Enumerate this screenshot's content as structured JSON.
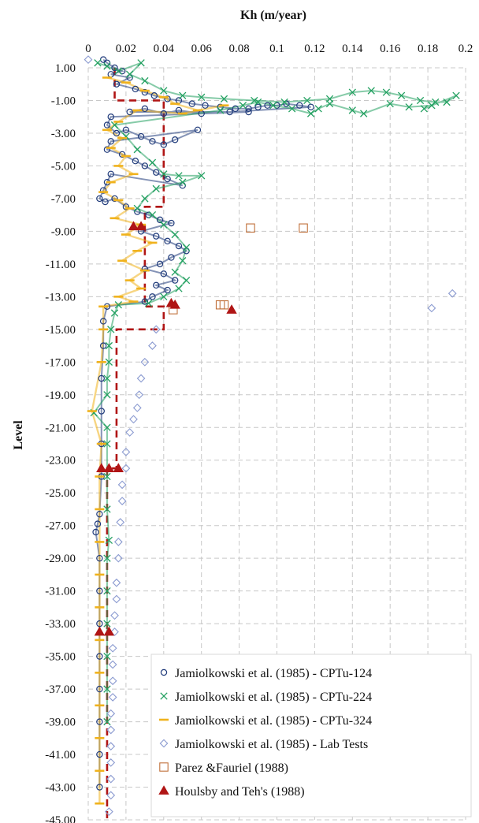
{
  "chart_data": {
    "type": "scatter",
    "title": "",
    "xlabel": "Kh (m/year)",
    "ylabel": "Level",
    "xlim": [
      0,
      0.2
    ],
    "ylim": [
      -45,
      1
    ],
    "x_ticks": [
      "0",
      "0.02",
      "0.04",
      "0.06",
      "0.08",
      "0.1",
      "0.12",
      "0.14",
      "0.16",
      "0.18",
      "0.2"
    ],
    "y_ticks": [
      "1.00",
      "-1.00",
      "-3.00",
      "-5.00",
      "-7.00",
      "-9.00",
      "-11.00",
      "-13.00",
      "-15.00",
      "-17.00",
      "-19.00",
      "-21.00",
      "-23.00",
      "-25.00",
      "-27.00",
      "-29.00",
      "-31.00",
      "-33.00",
      "-35.00",
      "-37.00",
      "-39.00",
      "-41.00",
      "-43.00",
      "-45.00"
    ],
    "x_axis_position": "top",
    "grid": true,
    "legend_position": "bottom-right",
    "series": [
      {
        "name": "Jamiolkowski et al. (1985) - CPTu-124",
        "marker": "circle",
        "color": "#1f3a7a",
        "points": [
          [
            0.008,
            1.5
          ],
          [
            0.01,
            1.3
          ],
          [
            0.014,
            1.0
          ],
          [
            0.018,
            0.8
          ],
          [
            0.012,
            0.6
          ],
          [
            0.022,
            0.4
          ],
          [
            0.015,
            0.0
          ],
          [
            0.025,
            -0.3
          ],
          [
            0.03,
            -0.5
          ],
          [
            0.035,
            -0.7
          ],
          [
            0.042,
            -0.9
          ],
          [
            0.048,
            -1.0
          ],
          [
            0.055,
            -1.2
          ],
          [
            0.062,
            -1.3
          ],
          [
            0.07,
            -1.4
          ],
          [
            0.078,
            -1.5
          ],
          [
            0.085,
            -1.5
          ],
          [
            0.09,
            -1.4
          ],
          [
            0.095,
            -1.3
          ],
          [
            0.1,
            -1.3
          ],
          [
            0.105,
            -1.2
          ],
          [
            0.112,
            -1.3
          ],
          [
            0.118,
            -1.4
          ],
          [
            0.075,
            -1.7
          ],
          [
            0.06,
            -1.8
          ],
          [
            0.048,
            -1.6
          ],
          [
            0.04,
            -1.8
          ],
          [
            0.03,
            -1.5
          ],
          [
            0.022,
            -1.7
          ],
          [
            0.085,
            -1.7
          ],
          [
            0.012,
            -2.0
          ],
          [
            0.01,
            -2.5
          ],
          [
            0.015,
            -3.0
          ],
          [
            0.02,
            -2.8
          ],
          [
            0.028,
            -3.2
          ],
          [
            0.034,
            -3.5
          ],
          [
            0.04,
            -3.7
          ],
          [
            0.046,
            -3.4
          ],
          [
            0.058,
            -2.8
          ],
          [
            0.012,
            -3.5
          ],
          [
            0.01,
            -4.0
          ],
          [
            0.018,
            -4.3
          ],
          [
            0.025,
            -4.7
          ],
          [
            0.03,
            -5.0
          ],
          [
            0.036,
            -5.4
          ],
          [
            0.042,
            -5.8
          ],
          [
            0.05,
            -6.2
          ],
          [
            0.012,
            -5.5
          ],
          [
            0.01,
            -6.0
          ],
          [
            0.008,
            -6.5
          ],
          [
            0.006,
            -7.0
          ],
          [
            0.009,
            -7.2
          ],
          [
            0.014,
            -7.0
          ],
          [
            0.02,
            -7.5
          ],
          [
            0.026,
            -7.8
          ],
          [
            0.032,
            -8.0
          ],
          [
            0.038,
            -8.3
          ],
          [
            0.044,
            -8.5
          ],
          [
            0.028,
            -9.0
          ],
          [
            0.036,
            -9.3
          ],
          [
            0.042,
            -9.6
          ],
          [
            0.048,
            -9.9
          ],
          [
            0.052,
            -10.2
          ],
          [
            0.044,
            -10.6
          ],
          [
            0.038,
            -11.0
          ],
          [
            0.03,
            -11.3
          ],
          [
            0.04,
            -11.6
          ],
          [
            0.046,
            -12.0
          ],
          [
            0.036,
            -12.3
          ],
          [
            0.042,
            -12.6
          ],
          [
            0.034,
            -13.0
          ],
          [
            0.03,
            -13.3
          ],
          [
            0.01,
            -13.6
          ],
          [
            0.008,
            -14.5
          ],
          [
            0.008,
            -16.0
          ],
          [
            0.007,
            -18.0
          ],
          [
            0.007,
            -20.0
          ],
          [
            0.007,
            -22.0
          ],
          [
            0.007,
            -24.0
          ],
          [
            0.006,
            -26.3
          ],
          [
            0.005,
            -26.9
          ],
          [
            0.004,
            -27.4
          ],
          [
            0.006,
            -29.0
          ],
          [
            0.006,
            -31.0
          ],
          [
            0.006,
            -33.0
          ],
          [
            0.006,
            -35.0
          ],
          [
            0.006,
            -37.0
          ],
          [
            0.006,
            -39.0
          ],
          [
            0.006,
            -41.0
          ],
          [
            0.006,
            -43.0
          ]
        ]
      },
      {
        "name": "Jamiolkowski et al. (1985) - CPTu-224",
        "marker": "x",
        "color": "#22a060",
        "points": [
          [
            0.005,
            1.3
          ],
          [
            0.01,
            1.1
          ],
          [
            0.016,
            0.8
          ],
          [
            0.028,
            1.3
          ],
          [
            0.022,
            0.6
          ],
          [
            0.03,
            0.2
          ],
          [
            0.04,
            -0.4
          ],
          [
            0.05,
            -0.7
          ],
          [
            0.06,
            -0.8
          ],
          [
            0.072,
            -0.9
          ],
          [
            0.088,
            -1.0
          ],
          [
            0.104,
            -1.1
          ],
          [
            0.116,
            -1.0
          ],
          [
            0.128,
            -0.9
          ],
          [
            0.14,
            -0.5
          ],
          [
            0.15,
            -0.4
          ],
          [
            0.158,
            -0.5
          ],
          [
            0.166,
            -0.7
          ],
          [
            0.176,
            -1.0
          ],
          [
            0.184,
            -1.1
          ],
          [
            0.19,
            -1.1
          ],
          [
            0.195,
            -0.7
          ],
          [
            0.178,
            -1.5
          ],
          [
            0.182,
            -1.3
          ],
          [
            0.17,
            -1.4
          ],
          [
            0.16,
            -1.2
          ],
          [
            0.146,
            -1.8
          ],
          [
            0.14,
            -1.6
          ],
          [
            0.128,
            -1.2
          ],
          [
            0.122,
            -1.5
          ],
          [
            0.118,
            -1.8
          ],
          [
            0.108,
            -1.5
          ],
          [
            0.098,
            -1.3
          ],
          [
            0.09,
            -1.1
          ],
          [
            0.082,
            -1.3
          ],
          [
            0.07,
            -1.6
          ],
          [
            0.014,
            -2.5
          ],
          [
            0.02,
            -3.2
          ],
          [
            0.026,
            -4.0
          ],
          [
            0.034,
            -4.8
          ],
          [
            0.04,
            -5.5
          ],
          [
            0.048,
            -5.6
          ],
          [
            0.06,
            -5.6
          ],
          [
            0.05,
            -6.0
          ],
          [
            0.036,
            -6.4
          ],
          [
            0.03,
            -7.0
          ],
          [
            0.026,
            -7.6
          ],
          [
            0.034,
            -8.0
          ],
          [
            0.04,
            -8.6
          ],
          [
            0.046,
            -9.2
          ],
          [
            0.052,
            -10.0
          ],
          [
            0.05,
            -10.8
          ],
          [
            0.046,
            -11.5
          ],
          [
            0.052,
            -12.0
          ],
          [
            0.048,
            -12.5
          ],
          [
            0.04,
            -13.0
          ],
          [
            0.032,
            -13.4
          ],
          [
            0.016,
            -13.5
          ],
          [
            0.014,
            -14.0
          ],
          [
            0.012,
            -15.0
          ],
          [
            0.011,
            -16.0
          ],
          [
            0.011,
            -17.0
          ],
          [
            0.01,
            -18.0
          ],
          [
            0.01,
            -19.0
          ],
          [
            0.003,
            -20.1
          ],
          [
            0.01,
            -21.0
          ],
          [
            0.01,
            -22.0
          ],
          [
            0.01,
            -24.0
          ],
          [
            0.01,
            -26.0
          ],
          [
            0.011,
            -27.9
          ],
          [
            0.01,
            -29.0
          ],
          [
            0.01,
            -31.0
          ],
          [
            0.01,
            -33.0
          ],
          [
            0.01,
            -35.0
          ],
          [
            0.01,
            -37.0
          ],
          [
            0.01,
            -39.0
          ]
        ]
      },
      {
        "name": "Jamiolkowski et al. (1985) - CPTu-324",
        "marker": "dash",
        "color": "#f0b21c",
        "points": [
          [
            0.01,
            0.4
          ],
          [
            0.02,
            0.1
          ],
          [
            0.03,
            -0.4
          ],
          [
            0.04,
            -0.8
          ],
          [
            0.046,
            -1.2
          ],
          [
            0.058,
            -1.6
          ],
          [
            0.072,
            -1.3
          ],
          [
            0.05,
            -1.8
          ],
          [
            0.026,
            -1.6
          ],
          [
            0.016,
            -2.3
          ],
          [
            0.01,
            -2.8
          ],
          [
            0.018,
            -3.3
          ],
          [
            0.012,
            -3.9
          ],
          [
            0.02,
            -4.4
          ],
          [
            0.016,
            -5.0
          ],
          [
            0.024,
            -5.5
          ],
          [
            0.012,
            -6.0
          ],
          [
            0.008,
            -6.6
          ],
          [
            0.016,
            -7.1
          ],
          [
            0.022,
            -7.6
          ],
          [
            0.014,
            -8.2
          ],
          [
            0.028,
            -8.6
          ],
          [
            0.02,
            -9.2
          ],
          [
            0.034,
            -9.7
          ],
          [
            0.026,
            -10.2
          ],
          [
            0.018,
            -10.8
          ],
          [
            0.03,
            -11.4
          ],
          [
            0.022,
            -12.0
          ],
          [
            0.028,
            -12.5
          ],
          [
            0.016,
            -13.0
          ],
          [
            0.024,
            -13.3
          ],
          [
            0.008,
            -13.6
          ],
          [
            0.008,
            -15.0
          ],
          [
            0.007,
            -17.0
          ],
          [
            0.002,
            -20.0
          ],
          [
            0.007,
            -22.0
          ],
          [
            0.006,
            -24.0
          ],
          [
            0.006,
            -26.0
          ],
          [
            0.006,
            -28.0
          ],
          [
            0.006,
            -30.0
          ],
          [
            0.006,
            -32.0
          ],
          [
            0.006,
            -34.0
          ],
          [
            0.006,
            -36.0
          ],
          [
            0.006,
            -38.0
          ],
          [
            0.006,
            -40.0
          ],
          [
            0.006,
            -42.0
          ],
          [
            0.006,
            -44.0
          ]
        ]
      },
      {
        "name": "Jamiolkowski et al. (1985) - Lab Tests",
        "marker": "diamond",
        "color": "#8a9ad0",
        "points": [
          [
            0.0,
            1.5
          ],
          [
            0.193,
            -12.8
          ],
          [
            0.182,
            -13.7
          ],
          [
            0.036,
            -15.0
          ],
          [
            0.034,
            -16.0
          ],
          [
            0.03,
            -17.0
          ],
          [
            0.028,
            -18.0
          ],
          [
            0.027,
            -19.0
          ],
          [
            0.026,
            -19.8
          ],
          [
            0.024,
            -20.5
          ],
          [
            0.022,
            -21.3
          ],
          [
            0.02,
            -22.5
          ],
          [
            0.02,
            -23.5
          ],
          [
            0.018,
            -24.5
          ],
          [
            0.018,
            -25.5
          ],
          [
            0.017,
            -26.8
          ],
          [
            0.016,
            -28.0
          ],
          [
            0.016,
            -29.0
          ],
          [
            0.015,
            -30.5
          ],
          [
            0.015,
            -31.5
          ],
          [
            0.014,
            -32.5
          ],
          [
            0.014,
            -33.5
          ],
          [
            0.013,
            -34.5
          ],
          [
            0.013,
            -35.5
          ],
          [
            0.013,
            -36.5
          ],
          [
            0.013,
            -37.5
          ],
          [
            0.012,
            -38.5
          ],
          [
            0.012,
            -39.5
          ],
          [
            0.012,
            -40.5
          ],
          [
            0.012,
            -41.5
          ],
          [
            0.012,
            -42.5
          ],
          [
            0.012,
            -43.5
          ],
          [
            0.011,
            -44.5
          ]
        ]
      },
      {
        "name": "Parez &Fauriel (1988)",
        "marker": "square",
        "color": "#c0703a",
        "points": [
          [
            0.086,
            -8.8
          ],
          [
            0.114,
            -8.8
          ],
          [
            0.07,
            -13.5
          ],
          [
            0.072,
            -13.5
          ],
          [
            0.045,
            -13.8
          ]
        ]
      },
      {
        "name": "Houlsby and Teh's (1988)",
        "marker": "triangle",
        "color": "#b01515",
        "points": [
          [
            0.024,
            -8.7
          ],
          [
            0.028,
            -8.7
          ],
          [
            0.044,
            -13.4
          ],
          [
            0.046,
            -13.5
          ],
          [
            0.076,
            -13.8
          ],
          [
            0.007,
            -23.5
          ],
          [
            0.011,
            -23.5
          ],
          [
            0.016,
            -23.5
          ],
          [
            0.006,
            -33.5
          ],
          [
            0.011,
            -33.5
          ]
        ]
      }
    ],
    "reference_line": {
      "style": "dashed",
      "color": "#b01515",
      "points": [
        [
          0.014,
          1.0
        ],
        [
          0.014,
          -1.0
        ],
        [
          0.04,
          -1.0
        ],
        [
          0.04,
          -7.5
        ],
        [
          0.03,
          -7.5
        ],
        [
          0.03,
          -13.6
        ],
        [
          0.04,
          -13.6
        ],
        [
          0.04,
          -15.0
        ],
        [
          0.015,
          -15.0
        ],
        [
          0.015,
          -23.5
        ],
        [
          0.01,
          -23.5
        ],
        [
          0.01,
          -45.0
        ]
      ]
    }
  }
}
